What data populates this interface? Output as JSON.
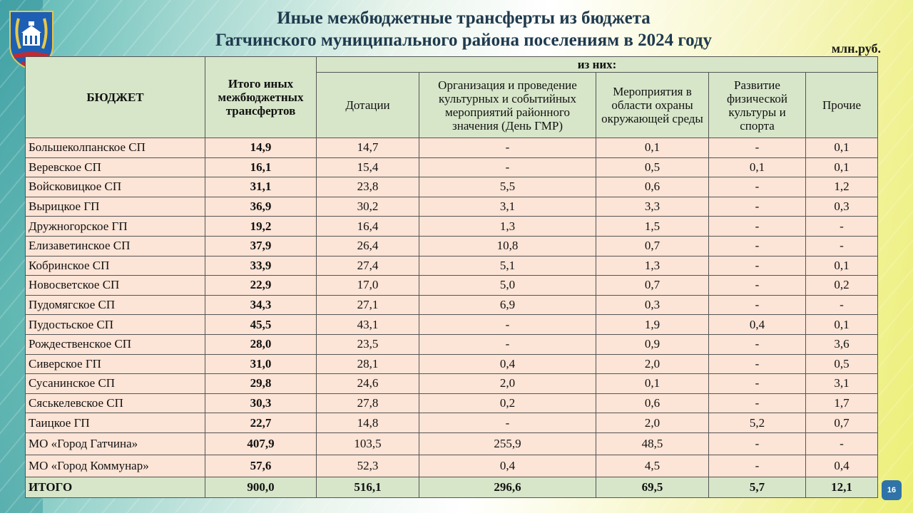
{
  "title_line1": "Иные межбюджетные трансферты из бюджета",
  "title_line2": "Гатчинского муниципального района поселениям в 2024 году",
  "units": "млн.руб.",
  "page_number": "16",
  "colors": {
    "header_bg": "#d7e6c9",
    "row_bg": "#fce4d6",
    "title": "#1f3a4d"
  },
  "headers": {
    "budget": "БЮДЖЕТ",
    "total": "Итого иных межбюджетных трансфертов",
    "of_which": "из них:",
    "subsidies": "Дотации",
    "culture": "Организация и проведение культурных и событийных мероприятий районного значения (День ГМР)",
    "ecology": "Мероприятия в области охраны окружающей среды",
    "sport": "Развитие физической культуры и спорта",
    "other": "Прочие"
  },
  "rows": [
    {
      "name": "Большеколпанское СП",
      "total": "14,9",
      "subsidies": "14,7",
      "culture": "-",
      "ecology": "0,1",
      "sport": "-",
      "other": "0,1"
    },
    {
      "name": "Веревское СП",
      "total": "16,1",
      "subsidies": "15,4",
      "culture": "-",
      "ecology": "0,5",
      "sport": "0,1",
      "other": "0,1"
    },
    {
      "name": "Войсковицкое СП",
      "total": "31,1",
      "subsidies": "23,8",
      "culture": "5,5",
      "ecology": "0,6",
      "sport": "-",
      "other": "1,2"
    },
    {
      "name": "Вырицкое ГП",
      "total": "36,9",
      "subsidies": "30,2",
      "culture": "3,1",
      "ecology": "3,3",
      "sport": "-",
      "other": "0,3"
    },
    {
      "name": "Дружногорское ГП",
      "total": "19,2",
      "subsidies": "16,4",
      "culture": "1,3",
      "ecology": "1,5",
      "sport": "-",
      "other": "-"
    },
    {
      "name": "Елизаветинское СП",
      "total": "37,9",
      "subsidies": "26,4",
      "culture": "10,8",
      "ecology": "0,7",
      "sport": "-",
      "other": "-"
    },
    {
      "name": "Кобринское СП",
      "total": "33,9",
      "subsidies": "27,4",
      "culture": "5,1",
      "ecology": "1,3",
      "sport": "-",
      "other": "0,1"
    },
    {
      "name": "Новосветское СП",
      "total": "22,9",
      "subsidies": "17,0",
      "culture": "5,0",
      "ecology": "0,7",
      "sport": "-",
      "other": "0,2"
    },
    {
      "name": "Пудомягское СП",
      "total": "34,3",
      "subsidies": "27,1",
      "culture": "6,9",
      "ecology": "0,3",
      "sport": "-",
      "other": "-"
    },
    {
      "name": "Пудостьское СП",
      "total": "45,5",
      "subsidies": "43,1",
      "culture": "-",
      "ecology": "1,9",
      "sport": "0,4",
      "other": "0,1"
    },
    {
      "name": "Рождественское СП",
      "total": "28,0",
      "subsidies": "23,5",
      "culture": "-",
      "ecology": "0,9",
      "sport": "-",
      "other": "3,6"
    },
    {
      "name": "Сиверское ГП",
      "total": "31,0",
      "subsidies": "28,1",
      "culture": "0,4",
      "ecology": "2,0",
      "sport": "-",
      "other": "0,5"
    },
    {
      "name": "Сусанинское СП",
      "total": "29,8",
      "subsidies": "24,6",
      "culture": "2,0",
      "ecology": "0,1",
      "sport": "-",
      "other": "3,1"
    },
    {
      "name": "Сяськелевское СП",
      "total": "30,3",
      "subsidies": "27,8",
      "culture": "0,2",
      "ecology": "0,6",
      "sport": "-",
      "other": "1,7"
    },
    {
      "name": "Таицкое ГП",
      "total": "22,7",
      "subsidies": "14,8",
      "culture": "-",
      "ecology": "2,0",
      "sport": "5,2",
      "other": "0,7"
    },
    {
      "name": "МО «Город Гатчина»",
      "total": "407,9",
      "subsidies": "103,5",
      "culture": "255,9",
      "ecology": "48,5",
      "sport": "-",
      "other": "-"
    },
    {
      "name": "МО «Город Коммунар»",
      "total": "57,6",
      "subsidies": "52,3",
      "culture": "0,4",
      "ecology": "4,5",
      "sport": "-",
      "other": "0,4"
    }
  ],
  "summary": {
    "name": "ИТОГО",
    "total": "900,0",
    "subsidies": "516,1",
    "culture": "296,6",
    "ecology": "69,5",
    "sport": "5,7",
    "other": "12,1"
  }
}
